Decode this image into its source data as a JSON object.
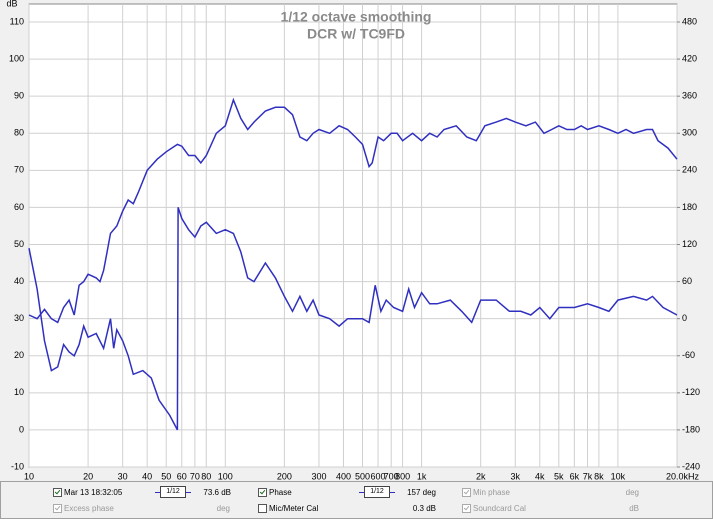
{
  "chart_data": {
    "type": "line",
    "title": "1/12 octave smoothing",
    "subtitle": "DCR w/ TC9FD",
    "x_unit": "Hz",
    "y_unit": "dB",
    "log_x": true,
    "grid": true,
    "xlim": [
      10,
      20000
    ],
    "ylim": [
      -10,
      110
    ],
    "y2lim": [
      -240,
      480
    ],
    "xticks": [
      10,
      20,
      30,
      40,
      50,
      60,
      70,
      80,
      100,
      200,
      300,
      400,
      500,
      600,
      700,
      800,
      {
        "value": 1000,
        "label": "1k"
      },
      {
        "value": 2000,
        "label": "2k"
      },
      {
        "value": 3000,
        "label": "3k"
      },
      {
        "value": 4000,
        "label": "4k"
      },
      {
        "value": 5000,
        "label": "5k"
      },
      {
        "value": 6000,
        "label": "6k"
      },
      {
        "value": 7000,
        "label": "7k"
      },
      {
        "value": 8000,
        "label": "8k"
      },
      {
        "value": 10000,
        "label": "10k"
      },
      {
        "value": 20000,
        "label": "20.0k"
      }
    ],
    "yticks": [
      -10,
      0,
      10,
      20,
      30,
      40,
      50,
      60,
      70,
      80,
      90,
      100,
      110
    ],
    "y2ticks": [
      -240,
      -180,
      -120,
      -60,
      0,
      60,
      120,
      180,
      240,
      300,
      360,
      420,
      480
    ],
    "series": [
      {
        "name": "Mar 13 18:32:05",
        "color": "#3030c0",
        "axis": "y",
        "x": [
          10,
          11,
          12,
          13,
          14,
          15,
          16,
          17,
          18,
          19,
          20,
          22,
          23,
          24,
          25,
          26,
          28,
          30,
          32,
          34,
          36,
          40,
          45,
          50,
          57,
          60,
          65,
          70,
          75,
          80,
          90,
          100,
          110,
          120,
          130,
          140,
          160,
          180,
          200,
          220,
          240,
          260,
          280,
          300,
          340,
          380,
          420,
          460,
          500,
          540,
          560,
          600,
          640,
          700,
          750,
          800,
          900,
          1000,
          1100,
          1200,
          1300,
          1500,
          1700,
          1900,
          2100,
          2400,
          2700,
          3000,
          3400,
          3800,
          4200,
          4600,
          5000,
          5500,
          6000,
          6500,
          7000,
          8000,
          9000,
          10000,
          11000,
          12000,
          14000,
          15000,
          16000,
          18000,
          20000
        ],
        "values": [
          31,
          30,
          32.5,
          30,
          29,
          33,
          35,
          31,
          39,
          40,
          42,
          41,
          40,
          43,
          48,
          53,
          55,
          59,
          62,
          61,
          64,
          70,
          73,
          75,
          77,
          76.5,
          74,
          74,
          72,
          74,
          80,
          82,
          89,
          84,
          81,
          83,
          86,
          87,
          87,
          85,
          79,
          78,
          80,
          81,
          80,
          82,
          81,
          79,
          77,
          71,
          72,
          79,
          78,
          80,
          80,
          78,
          80,
          78,
          80,
          79,
          81,
          82,
          79,
          78,
          82,
          83,
          84,
          83,
          82,
          83,
          80,
          81,
          82,
          81,
          81,
          82,
          81,
          82,
          81,
          80,
          81,
          80,
          81,
          81,
          78,
          76,
          73
        ]
      },
      {
        "name": "Phase",
        "color": "#3030c0",
        "axis": "y2",
        "x": [
          10,
          11,
          12,
          13,
          14,
          15,
          16,
          17,
          18,
          19,
          20,
          22,
          24,
          26,
          27,
          28,
          30,
          32,
          34,
          38,
          42,
          46,
          52,
          57,
          57.5,
          60,
          65,
          70,
          75,
          80,
          90,
          100,
          110,
          120,
          130,
          140,
          160,
          180,
          200,
          220,
          240,
          260,
          280,
          300,
          340,
          380,
          420,
          460,
          500,
          540,
          580,
          620,
          660,
          720,
          800,
          860,
          920,
          1000,
          1100,
          1200,
          1400,
          1600,
          1800,
          2000,
          2400,
          2800,
          3200,
          3600,
          4000,
          4500,
          5000,
          6000,
          7000,
          8000,
          9000,
          10000,
          12000,
          14000,
          15000,
          17000,
          20000
        ],
        "values": [
          114,
          48,
          -36,
          -84,
          -78,
          -42,
          -54,
          -60,
          -42,
          -12,
          -30,
          -24,
          -48,
          0,
          -48,
          -18,
          -36,
          -60,
          -90,
          -84,
          -96,
          -132,
          -156,
          -180,
          180,
          162,
          144,
          132,
          150,
          156,
          138,
          144,
          138,
          108,
          66,
          60,
          90,
          66,
          36,
          12,
          36,
          12,
          30,
          6,
          0,
          -12,
          0,
          0,
          0,
          -6,
          54,
          12,
          30,
          18,
          12,
          48,
          18,
          42,
          24,
          24,
          30,
          12,
          -6,
          30,
          30,
          12,
          12,
          6,
          18,
          0,
          18,
          18,
          24,
          18,
          12,
          30,
          36,
          30,
          36,
          18,
          6
        ]
      }
    ]
  },
  "legend_panel": {
    "items": [
      {
        "checked": true,
        "enabled": true,
        "smoothing": "1/12",
        "reading": "73.6 dB"
      },
      {
        "checked": true,
        "enabled": true,
        "smoothing": "1/12",
        "reading": "157 deg"
      },
      {
        "label": "Min phase",
        "checked": true,
        "enabled": false,
        "unit": "deg"
      },
      {
        "label": "Excess phase",
        "checked": true,
        "enabled": false,
        "unit": "deg"
      },
      {
        "label": "Mic/Meter Cal",
        "checked": false,
        "enabled": true,
        "reading": "0.3 dB"
      },
      {
        "label": "Soundcard Cal",
        "checked": true,
        "enabled": false,
        "unit": "dB"
      }
    ]
  }
}
